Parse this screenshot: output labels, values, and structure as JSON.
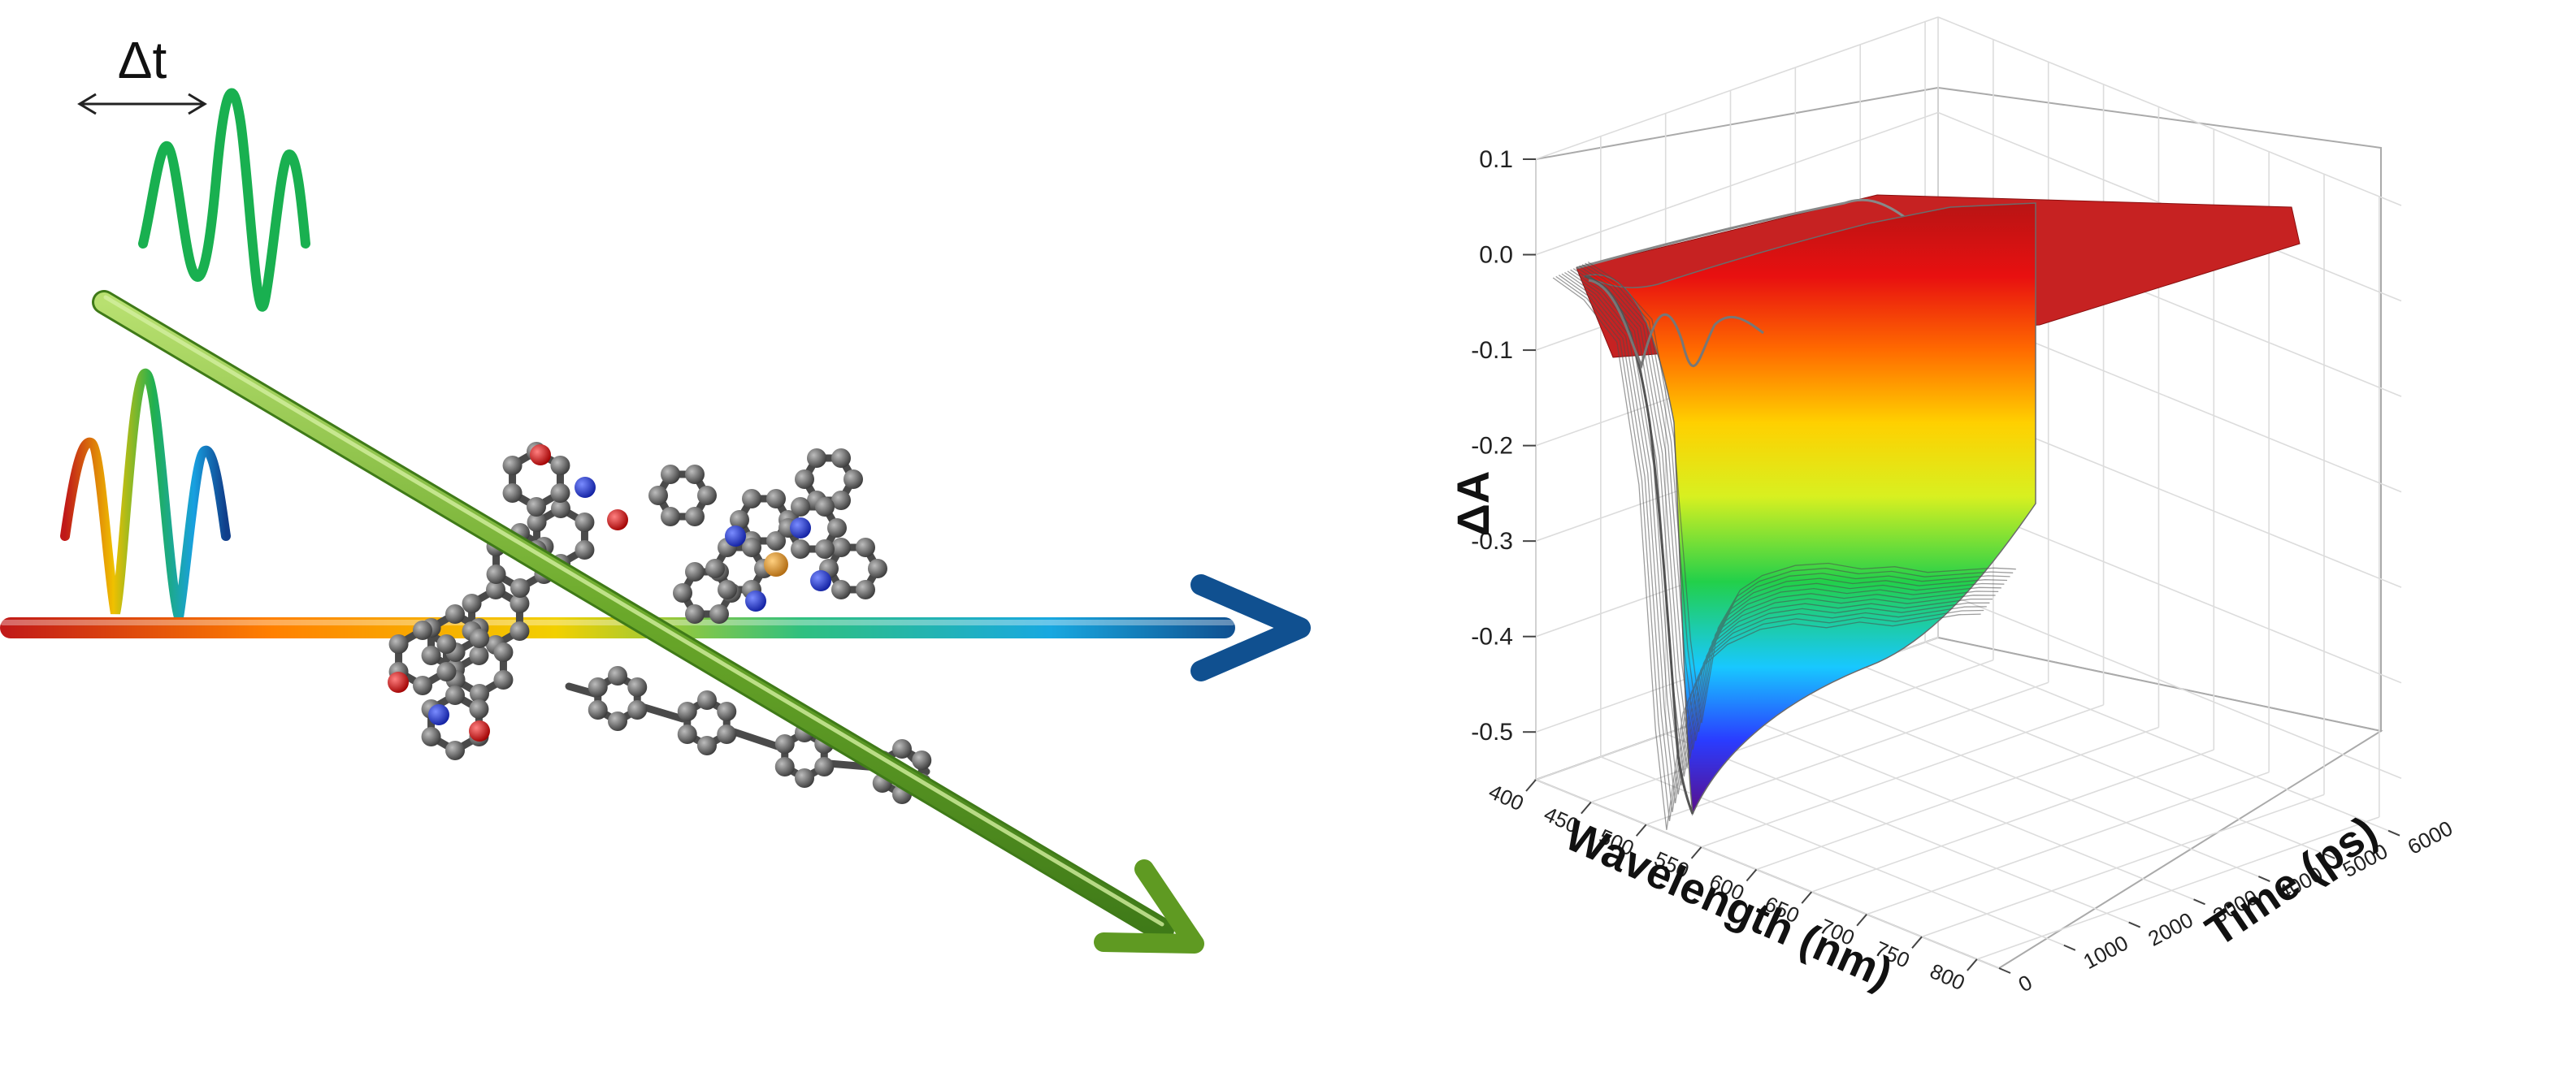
{
  "pump_probe": {
    "delay_label": "Δt"
  },
  "chart_data": {
    "type": "surface",
    "x_axis": {
      "label": "Wavelength (nm)",
      "ticks": [
        400,
        450,
        500,
        550,
        600,
        650,
        700,
        750,
        800
      ],
      "range": [
        400,
        820
      ]
    },
    "y_axis": {
      "label": "Time (ps)",
      "ticks": [
        0,
        1000,
        2000,
        3000,
        4000,
        5000,
        6000
      ],
      "range": [
        0,
        6200
      ]
    },
    "z_axis": {
      "label": "ΔA",
      "ticks": [
        "0.1",
        "0.0",
        "-0.1",
        "-0.2",
        "-0.3",
        "-0.4",
        "-0.5"
      ],
      "range": [
        -0.55,
        0.1
      ]
    },
    "profile_at_early_time": [
      [
        412,
        -0.02
      ],
      [
        440,
        -0.03
      ],
      [
        470,
        -0.06
      ],
      [
        490,
        -0.2
      ],
      [
        505,
        -0.45
      ],
      [
        515,
        -0.55
      ],
      [
        530,
        -0.42
      ],
      [
        550,
        -0.36
      ],
      [
        570,
        -0.33
      ],
      [
        600,
        -0.3
      ],
      [
        630,
        -0.28
      ],
      [
        660,
        -0.27
      ],
      [
        690,
        -0.25
      ],
      [
        720,
        -0.24
      ],
      [
        750,
        -0.22
      ],
      [
        780,
        -0.2
      ],
      [
        800,
        -0.19
      ]
    ],
    "grid": true,
    "colormap": [
      "#5a0f8a",
      "#2a3cff",
      "#18c8ff",
      "#22d04a",
      "#d8f020",
      "#ffd000",
      "#ff6a00",
      "#e81010",
      "#b81414"
    ]
  }
}
